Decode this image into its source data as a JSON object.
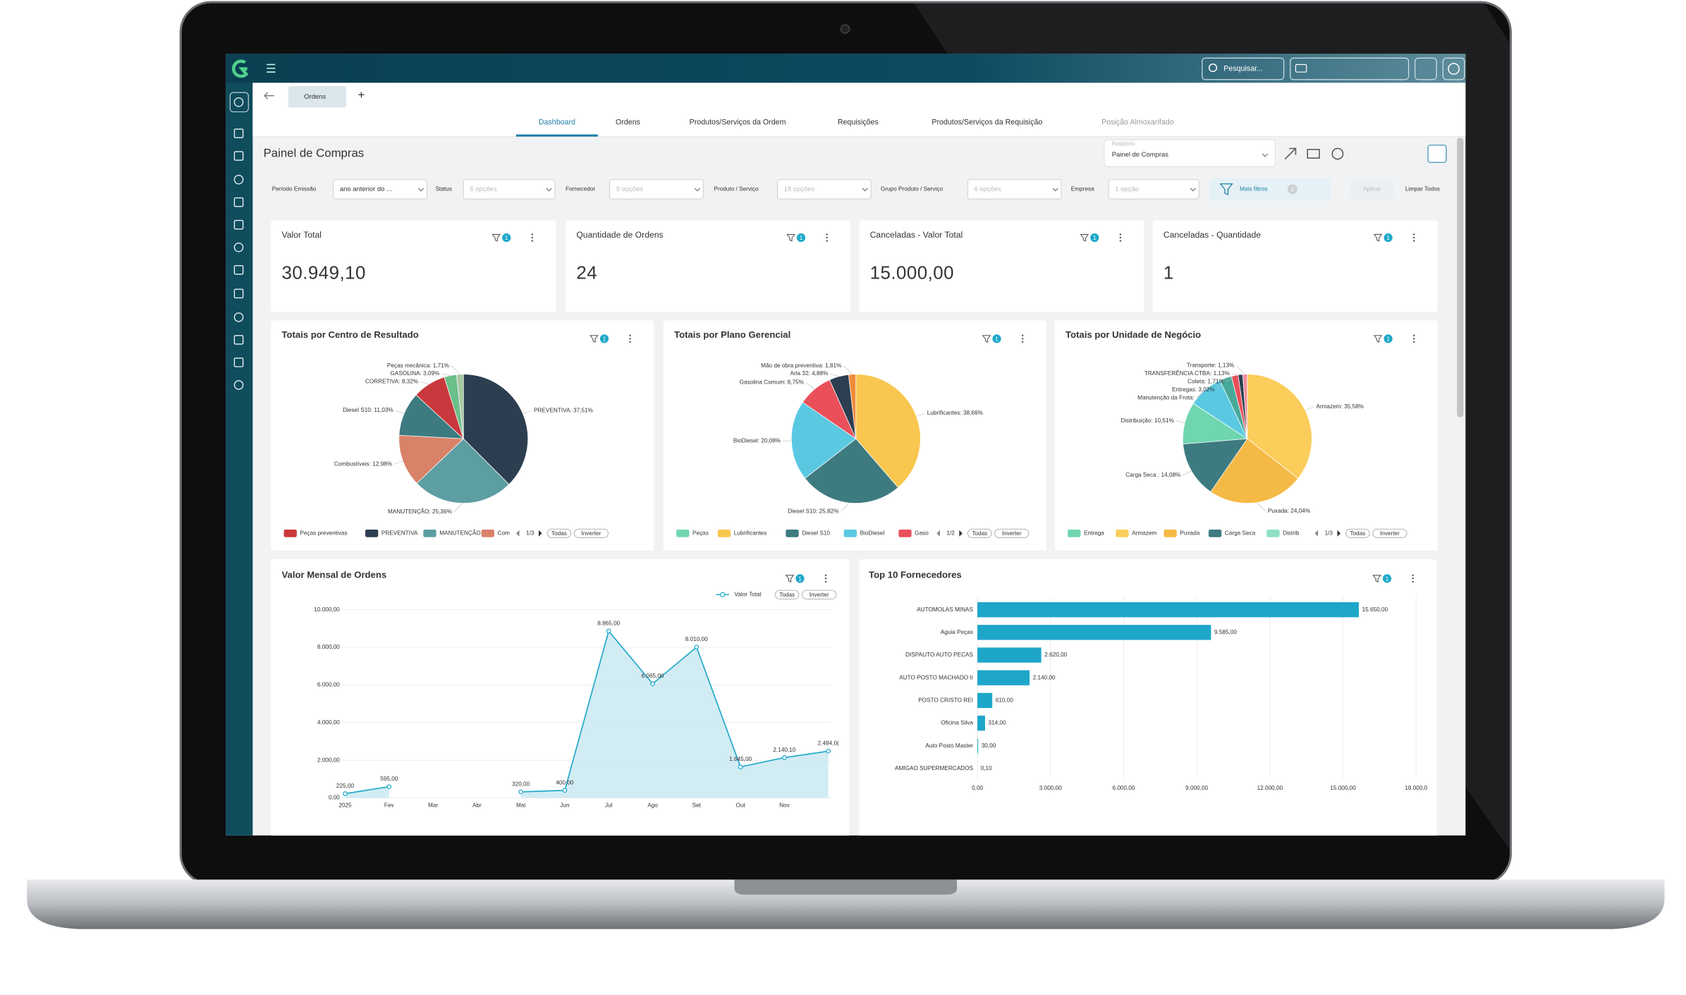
{
  "app": {
    "search": "Pesquisar...",
    "open_tab": "Ordens",
    "add_tab": "+"
  },
  "nav_tabs": [
    "Dashboard",
    "Ordens",
    "Produtos/Serviços da Ordem",
    "Requisições",
    "Produtos/Serviços da Requisição",
    "Posição Almoxarifado"
  ],
  "page": {
    "title": "Painel de Compras",
    "report_label": "Relatório",
    "report_value": "Painel de Compras"
  },
  "filters": [
    {
      "label": "Período Emissão",
      "value": "ano anterior do ..."
    },
    {
      "label": "Status",
      "value": "6 opções"
    },
    {
      "label": "Fornecedor",
      "value": "9 opções"
    },
    {
      "label": "Produto / Serviço",
      "value": "18 opções"
    },
    {
      "label": "Grupo Produto / Serviço",
      "value": "6 opções"
    },
    {
      "label": "Empresa",
      "value": "1 opção"
    }
  ],
  "more_filters": "Mais filtros",
  "more_filters_count": 0,
  "apply": "Aplicar",
  "clear": "Limpar Todos",
  "kpis": [
    {
      "title": "Valor Total",
      "value": "30.949,10",
      "filter_count": 1
    },
    {
      "title": "Quantidade de Ordens",
      "value": "24",
      "filter_count": 1
    },
    {
      "title": "Canceladas - Valor Total",
      "value": "15.000,00",
      "filter_count": 1
    },
    {
      "title": "Canceladas - Quantidade",
      "value": "1",
      "filter_count": 1
    }
  ],
  "charts": [
    {
      "type": "pie",
      "title": "Totais por Centro de Resultado",
      "filter_count": 1,
      "values": [
        37.51,
        25.36,
        12.98,
        11.03,
        8.32,
        3.09,
        1.71
      ],
      "value_labels": [
        "PREVENTIVA: 37,51%",
        "MANUTENÇÃO: 25,36%",
        "Combustíveis: 12,98%",
        "Diesel S10: 11,03%",
        "CORRETIVA: 8,32%",
        "GASOLINA: 3,09%",
        "Peças mecânica: 1,71%"
      ],
      "colors": [
        "#2c3e50",
        "#5d9ea3",
        "#d9826a",
        "#3d7b80",
        "#c9383c",
        "#6bbf8a",
        "#a8c8a0"
      ],
      "legend": [
        {
          "name": "Peças preventivas",
          "color": "#c9383c"
        },
        {
          "name": "PREVENTIVA",
          "color": "#2c3e50"
        },
        {
          "name": "MANUTENÇÃO",
          "color": "#5d9ea3"
        },
        {
          "name": "Com",
          "color": "#d9826a"
        }
      ],
      "legend_page": "1/3",
      "legend_all": "Todas",
      "legend_invert": "Inverter"
    },
    {
      "type": "pie",
      "title": "Totais por Plano Gerencial",
      "filter_count": 1,
      "values": [
        38.66,
        25.82,
        20.08,
        8.75,
        4.88,
        1.81
      ],
      "value_labels": [
        "Lubrificantes: 38,66%",
        "Diesel S10: 25,82%",
        "BioDiesel: 20,08%",
        "Gasolina Comum: 8,75%",
        "Arla 32: 4,88%",
        "Mão de obra preventiva: 1,81%"
      ],
      "colors": [
        "#f9c74f",
        "#3d7b80",
        "#5bc8e2",
        "#e9505a",
        "#2c3e50",
        "#f08c3a"
      ],
      "legend": [
        {
          "name": "Peças",
          "color": "#6fd6b0"
        },
        {
          "name": "Lubrificantes",
          "color": "#f9c74f"
        },
        {
          "name": "Diesel S10",
          "color": "#3d7b80"
        },
        {
          "name": "BioDiesel",
          "color": "#5bc8e2"
        },
        {
          "name": "Gaso",
          "color": "#e9505a"
        }
      ],
      "legend_page": "1/2",
      "legend_all": "Todas",
      "legend_invert": "Inverter"
    },
    {
      "type": "pie",
      "title": "Totais por Unidade de Negócio",
      "filter_count": 1,
      "values": [
        35.58,
        24.04,
        14.08,
        10.51,
        8.8,
        3.02,
        1.71,
        1.13,
        1.13
      ],
      "value_labels": [
        "Armazem: 35,58%",
        "Puxada: 24,04%",
        "Carga Seca : 14,08%",
        "Distribuição: 10,51%",
        "Manutenção da Frota:",
        "Entregas: 3,02%",
        "Coleta: 1,71%",
        "TRANSFERÊNCIA CTBA: 1,13%",
        "Transporte: 1,13%"
      ],
      "colors": [
        "#fbcd5a",
        "#f5b945",
        "#3d7b80",
        "#6fd6b0",
        "#5bc8e2",
        "#48a999",
        "#e9505a",
        "#2c3e50",
        "#f08c9a"
      ],
      "legend": [
        {
          "name": "Entrega",
          "color": "#6fd6b0"
        },
        {
          "name": "Armazem",
          "color": "#fbcd5a"
        },
        {
          "name": "Puxada",
          "color": "#f5b945"
        },
        {
          "name": "Carga Seca",
          "color": "#3d7b80"
        },
        {
          "name": "Distrib",
          "color": "#8fe0c2"
        }
      ],
      "legend_page": "1/3",
      "legend_all": "Todas",
      "legend_invert": "Inverter"
    },
    {
      "type": "line",
      "title": "Valor Mensal de Ordens",
      "filter_count": 1,
      "categories": [
        "2025",
        "Fev",
        "Mar",
        "Abr",
        "Mai",
        "Jun",
        "Jul",
        "Ago",
        "Set",
        "Out",
        "Nov",
        null
      ],
      "series": [
        {
          "name": "Valor Total",
          "color": "#1fa8c9",
          "values": [
            225,
            595,
            null,
            null,
            320,
            400,
            8865,
            6065,
            8010,
            1645,
            2140.1,
            2484
          ],
          "value_labels": [
            "225,00",
            "595,00",
            null,
            null,
            "320,00",
            "400,00",
            "8.865,00",
            "6.065,00",
            "8.010,00",
            "1.645,00",
            "2.140,10",
            "2.484,0("
          ]
        }
      ],
      "ylim": [
        0,
        10000
      ],
      "yticks": [
        {
          "value": 0,
          "label": "0,00"
        },
        {
          "value": 2000,
          "label": "2.000,00"
        },
        {
          "value": 4000,
          "label": "4.000,00"
        },
        {
          "value": 6000,
          "label": "6.000,00"
        },
        {
          "value": 8000,
          "label": "8.000,00"
        },
        {
          "value": 10000,
          "label": "10.000,00"
        }
      ],
      "grid": true,
      "legend_all": "Todas",
      "legend_invert": "Inverter"
    },
    {
      "type": "bar",
      "orientation": "horizontal",
      "title": "Top 10 Fornecedores",
      "filter_count": 1,
      "color": "#1ea6c9",
      "categories": [
        "AUTOMOLAS MINAS",
        "Aguia Peças",
        "DISPAUTO AUTO PECAS",
        "AUTO POSTO MACHADO II",
        "POSTO CRISTO REI",
        "Oficina Silva",
        "Auto Posto Master",
        "AMIGAO SUPERMERCADOS"
      ],
      "values": [
        15650,
        9585,
        2620,
        2140,
        610,
        314,
        30,
        0.1
      ],
      "value_labels": [
        "15.650,00",
        "9.585,00",
        "2.620,00",
        "2.140,00",
        "610,00",
        "314,00",
        "30,00",
        "0,10"
      ],
      "xlim": [
        0,
        18000
      ],
      "xticks": [
        {
          "value": 0,
          "label": "0,00"
        },
        {
          "value": 3000,
          "label": "3.000,00"
        },
        {
          "value": 6000,
          "label": "6.000,00"
        },
        {
          "value": 9000,
          "label": "9.000,00"
        },
        {
          "value": 12000,
          "label": "12.000,00"
        },
        {
          "value": 15000,
          "label": "15.000,00"
        },
        {
          "value": 18000,
          "label": "18.000,0"
        }
      ],
      "grid": true
    }
  ]
}
